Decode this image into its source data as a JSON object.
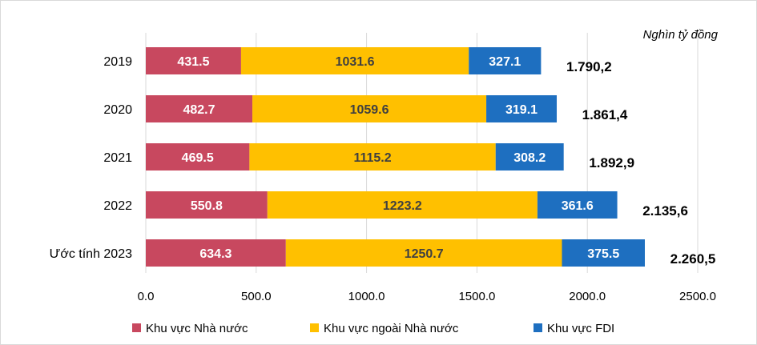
{
  "chart_data": {
    "type": "bar",
    "orientation": "horizontal",
    "stacked": true,
    "unit_label": "Nghìn tỷ đồng",
    "categories": [
      "2019",
      "2020",
      "2021",
      "2022",
      "Ước tính 2023"
    ],
    "series": [
      {
        "name": "Khu vực Nhà nước",
        "color": "#c8485f",
        "label_color": "#ffffff",
        "values": [
          431.5,
          482.7,
          469.5,
          550.8,
          634.3
        ],
        "labels": [
          "431.5",
          "482.7",
          "469.5",
          "550.8",
          "634.3"
        ]
      },
      {
        "name": "Khu vực ngoài Nhà nước",
        "color": "#ffc000",
        "label_color": "#404040",
        "values": [
          1031.6,
          1059.6,
          1115.2,
          1223.2,
          1250.7
        ],
        "labels": [
          "1031.6",
          "1059.6",
          "1115.2",
          "1223.2",
          "1250.7"
        ]
      },
      {
        "name": "Khu vực FDI",
        "color": "#1e6fc0",
        "label_color": "#ffffff",
        "values": [
          327.1,
          319.1,
          308.2,
          361.6,
          375.5
        ],
        "labels": [
          "327.1",
          "319.1",
          "308.2",
          "361.6",
          "375.5"
        ]
      }
    ],
    "totals": [
      "1.790,2",
      "1.861,4",
      "1.892,9",
      "2.135,6",
      "2.260,5"
    ],
    "xlim": [
      0,
      2500
    ],
    "xticks": [
      0,
      500,
      1000,
      1500,
      2000,
      2500
    ],
    "xtick_labels": [
      "0.0",
      "500.0",
      "1000.0",
      "1500.0",
      "2000.0",
      "2500.0"
    ],
    "grid": true,
    "gridline_color": "#d9d9d9",
    "legend_position": "bottom"
  }
}
